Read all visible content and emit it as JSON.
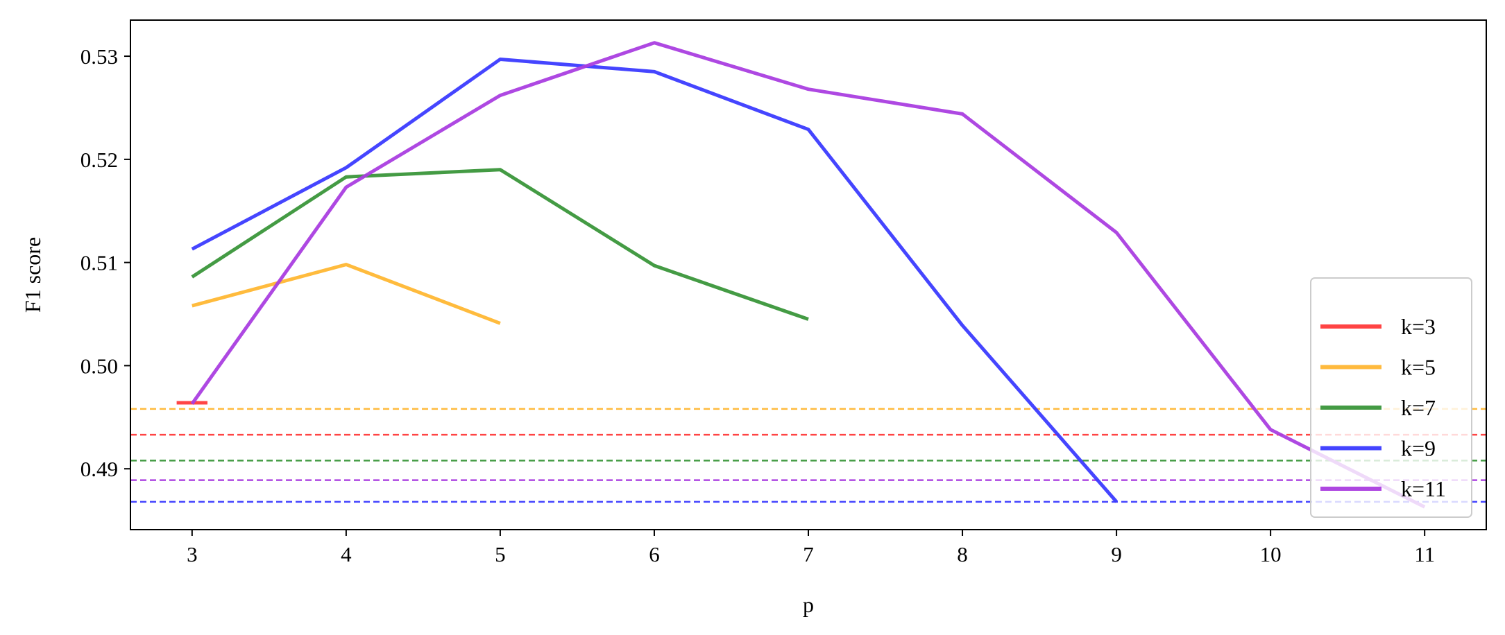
{
  "chart_data": {
    "type": "line",
    "xlabel": "p",
    "ylabel": "F1 score",
    "xlim": [
      2.6,
      11.4
    ],
    "ylim": [
      0.4841,
      0.5335
    ],
    "xticks": [
      3,
      4,
      5,
      6,
      7,
      8,
      9,
      10,
      11
    ],
    "xtick_labels": [
      "3",
      "4",
      "5",
      "6",
      "7",
      "8",
      "9",
      "10",
      "11"
    ],
    "yticks": [
      0.49,
      0.5,
      0.51,
      0.52,
      0.53
    ],
    "ytick_labels": [
      "0.49",
      "0.50",
      "0.51",
      "0.52",
      "0.53"
    ],
    "grid": false,
    "legend_position": "lower-right",
    "series": [
      {
        "name": "k=3",
        "color": "#ff3b3b",
        "x": [
          2.9,
          3.1
        ],
        "y": [
          0.4964,
          0.4964
        ]
      },
      {
        "name": "k=5",
        "color": "#ffb733",
        "x": [
          3,
          4,
          5
        ],
        "y": [
          0.5058,
          0.5098,
          0.5041
        ]
      },
      {
        "name": "k=7",
        "color": "#3a963a",
        "x": [
          3,
          4,
          5,
          6,
          7
        ],
        "y": [
          0.5086,
          0.5183,
          0.519,
          0.5097,
          0.5045
        ]
      },
      {
        "name": "k=9",
        "color": "#3b3bff",
        "x": [
          3,
          4,
          5,
          6,
          7,
          8,
          9
        ],
        "y": [
          0.5113,
          0.5192,
          0.5297,
          0.5285,
          0.5229,
          0.5039,
          0.4868
        ]
      },
      {
        "name": "k=11",
        "color": "#aa3ee0",
        "x": [
          3,
          4,
          5,
          6,
          7,
          8,
          9,
          10,
          11
        ],
        "y": [
          0.4963,
          0.5173,
          0.5262,
          0.5313,
          0.5268,
          0.5244,
          0.5129,
          0.4938,
          0.4863
        ]
      }
    ],
    "baselines": [
      {
        "series": "k=5",
        "color": "#ffb733",
        "y": 0.4958
      },
      {
        "series": "k=3",
        "color": "#ff3b3b",
        "y": 0.4933
      },
      {
        "series": "k=7",
        "color": "#3a963a",
        "y": 0.4908
      },
      {
        "series": "k=11",
        "color": "#aa3ee0",
        "y": 0.4889
      },
      {
        "series": "k=9",
        "color": "#3b3bff",
        "y": 0.4868
      }
    ]
  }
}
